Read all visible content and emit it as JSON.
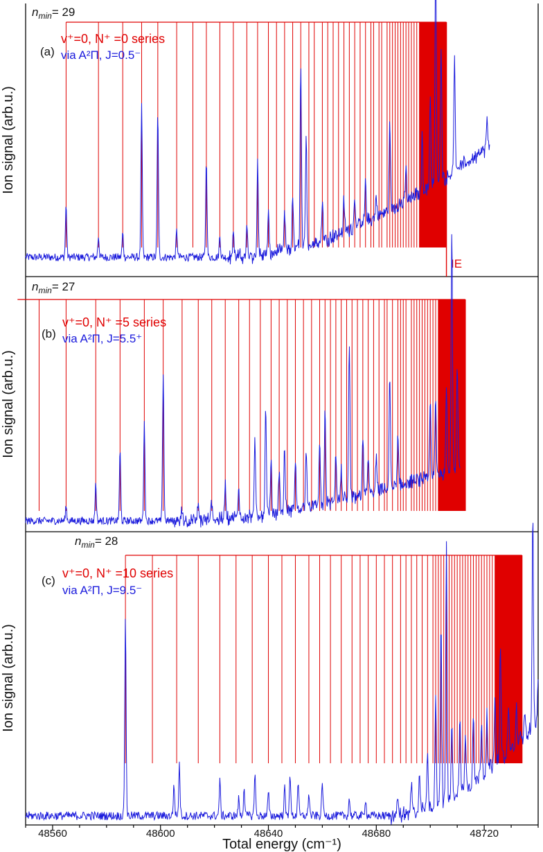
{
  "colors": {
    "series": "#e00000",
    "spectrum": "#1a1adc",
    "axis": "#000000"
  },
  "xlabel": "Total energy (cm⁻¹)",
  "x_ticks": [
    48560,
    48600,
    48640,
    48680,
    48720
  ],
  "xlim": [
    48550,
    48740
  ],
  "panels": [
    {
      "id": "a",
      "tag": "(a)",
      "ylabel": "Ion signal (arb.u.)",
      "nmin_prefix": "n",
      "nmin_sub": "min",
      "nmin_value": "= 29",
      "series_label": "v⁺=0, N⁺ =0 series",
      "via_label": "via A²Π, J=0.5⁻",
      "ie_label": "IE"
    },
    {
      "id": "b",
      "tag": "(b)",
      "ylabel": "Ion signal (arb.u.)",
      "nmin_prefix": "n",
      "nmin_sub": "min",
      "nmin_value": "= 27",
      "series_label": "v⁺=0, N⁺ =5 series",
      "via_label": "via A²Π, J=5.5⁺"
    },
    {
      "id": "c",
      "tag": "(c)",
      "ylabel": "Ion signal (arb.u.)",
      "nmin_prefix": "n",
      "nmin_sub": "min",
      "nmin_value": "= 28",
      "series_label": "v⁺=0, N⁺ =10 series",
      "via_label": "via A²Π, J=9.5⁻"
    }
  ],
  "chart_data": [
    {
      "type": "line",
      "panel": "a",
      "series_limit": 48706,
      "series_positions": [
        48565,
        48577,
        48586,
        48593,
        48599,
        48606,
        48612,
        48617,
        48622,
        48627,
        48632,
        48636,
        48640,
        48643,
        48646,
        48649,
        48652,
        48655,
        48657,
        48660,
        48662,
        48664,
        48666,
        48668,
        48670,
        48672,
        48674,
        48676,
        48678,
        48679,
        48681,
        48682,
        48684,
        48685,
        48686,
        48687,
        48688,
        48689,
        48690,
        48691,
        48692,
        48693,
        48694,
        48695,
        48696,
        48697,
        48698,
        48699,
        48700,
        48701,
        48702,
        48703,
        48704,
        48705
      ],
      "baseline": 0.05,
      "rise": {
        "start": 48625,
        "end": 48722,
        "level": 0.42
      },
      "peaks": [
        [
          48565,
          0.2
        ],
        [
          48577,
          0.08
        ],
        [
          48586,
          0.09
        ],
        [
          48593,
          0.57
        ],
        [
          48599,
          0.55
        ],
        [
          48606,
          0.1
        ],
        [
          48617,
          0.37
        ],
        [
          48622,
          0.08
        ],
        [
          48627,
          0.1
        ],
        [
          48632,
          0.11
        ],
        [
          48636,
          0.35
        ],
        [
          48640,
          0.15
        ],
        [
          48646,
          0.14
        ],
        [
          48649,
          0.2
        ],
        [
          48652,
          0.69
        ],
        [
          48654,
          0.4
        ],
        [
          48660,
          0.15
        ],
        [
          48668,
          0.12
        ],
        [
          48672,
          0.12
        ],
        [
          48676,
          0.15
        ],
        [
          48680,
          0.08
        ],
        [
          48685,
          0.35
        ],
        [
          48691,
          0.12
        ],
        [
          48697,
          0.2
        ],
        [
          48700,
          0.35
        ],
        [
          48702,
          0.88
        ],
        [
          48704,
          0.5
        ],
        [
          48709,
          0.45
        ],
        [
          48721,
          0.1
        ]
      ],
      "x_end": 48722
    },
    {
      "type": "line",
      "panel": "b",
      "series_limit": 48713,
      "series_positions": [
        48555,
        48565,
        48576,
        48585,
        48594,
        48601,
        48608,
        48614,
        48619,
        48624,
        48629,
        48633,
        48637,
        48641,
        48644,
        48647,
        48650,
        48653,
        48656,
        48659,
        48661,
        48663,
        48665,
        48667,
        48669,
        48671,
        48673,
        48675,
        48677,
        48679,
        48681,
        48683,
        48684,
        48686,
        48688,
        48689,
        48690,
        48691,
        48693,
        48694,
        48695,
        48696,
        48697,
        48698,
        48699,
        48700,
        48701,
        48702,
        48703,
        48704,
        48705,
        48706,
        48707,
        48708,
        48709,
        48710,
        48711,
        48712
      ],
      "baseline": 0.03,
      "rise": {
        "start": 48605,
        "end": 48712,
        "level": 0.22
      },
      "peaks": [
        [
          48565,
          0.06
        ],
        [
          48576,
          0.15
        ],
        [
          48585,
          0.28
        ],
        [
          48594,
          0.39
        ],
        [
          48601,
          0.6
        ],
        [
          48608,
          0.05
        ],
        [
          48614,
          0.06
        ],
        [
          48619,
          0.08
        ],
        [
          48624,
          0.15
        ],
        [
          48629,
          0.12
        ],
        [
          48635,
          0.3
        ],
        [
          48639,
          0.43
        ],
        [
          48641,
          0.2
        ],
        [
          48644,
          0.18
        ],
        [
          48646,
          0.25
        ],
        [
          48650,
          0.2
        ],
        [
          48654,
          0.25
        ],
        [
          48659,
          0.25
        ],
        [
          48661,
          0.38
        ],
        [
          48665,
          0.2
        ],
        [
          48667,
          0.12
        ],
        [
          48670,
          0.6
        ],
        [
          48675,
          0.25
        ],
        [
          48677,
          0.15
        ],
        [
          48680,
          0.14
        ],
        [
          48685,
          0.45
        ],
        [
          48688,
          0.2
        ],
        [
          48700,
          0.3
        ],
        [
          48702,
          0.3
        ],
        [
          48706,
          0.35
        ],
        [
          48708,
          0.98
        ],
        [
          48710,
          0.4
        ]
      ],
      "x_end": 48711
    },
    {
      "type": "line",
      "panel": "c",
      "series_limit": 48734,
      "series_positions": [
        48587,
        48597,
        48606,
        48614,
        48622,
        48628,
        48634,
        48640,
        48645,
        48650,
        48655,
        48659,
        48663,
        48667,
        48671,
        48674,
        48677,
        48680,
        48683,
        48686,
        48689,
        48691,
        48693,
        48695,
        48697,
        48699,
        48701,
        48702,
        48703,
        48704,
        48705,
        48706,
        48707,
        48708,
        48709,
        48710,
        48711,
        48712,
        48713,
        48714,
        48715,
        48716,
        48717,
        48718,
        48719,
        48720,
        48721,
        48722,
        48723,
        48724,
        48725,
        48726,
        48727,
        48728,
        48729,
        48730,
        48731,
        48732,
        48733
      ],
      "baseline": 0.02,
      "rise": {
        "start": 48685,
        "end": 48740,
        "level": 0.33
      },
      "peaks": [
        [
          48587,
          0.7
        ],
        [
          48605,
          0.11
        ],
        [
          48607,
          0.18
        ],
        [
          48622,
          0.12
        ],
        [
          48629,
          0.06
        ],
        [
          48631,
          0.1
        ],
        [
          48635,
          0.15
        ],
        [
          48640,
          0.08
        ],
        [
          48646,
          0.1
        ],
        [
          48648,
          0.15
        ],
        [
          48651,
          0.12
        ],
        [
          48655,
          0.08
        ],
        [
          48660,
          0.12
        ],
        [
          48670,
          0.06
        ],
        [
          48676,
          0.06
        ],
        [
          48688,
          0.06
        ],
        [
          48693,
          0.1
        ],
        [
          48696,
          0.13
        ],
        [
          48699,
          0.2
        ],
        [
          48702,
          0.4
        ],
        [
          48704,
          0.65
        ],
        [
          48706,
          0.9
        ],
        [
          48708,
          0.25
        ],
        [
          48711,
          0.25
        ],
        [
          48713,
          0.2
        ],
        [
          48716,
          0.25
        ],
        [
          48719,
          0.2
        ],
        [
          48721,
          0.22
        ],
        [
          48724,
          0.25
        ],
        [
          48726,
          0.4
        ],
        [
          48729,
          0.15
        ],
        [
          48732,
          0.12
        ],
        [
          48735,
          0.1
        ],
        [
          48738,
          0.75
        ],
        [
          48740,
          0.15
        ]
      ],
      "x_end": 48740
    }
  ]
}
